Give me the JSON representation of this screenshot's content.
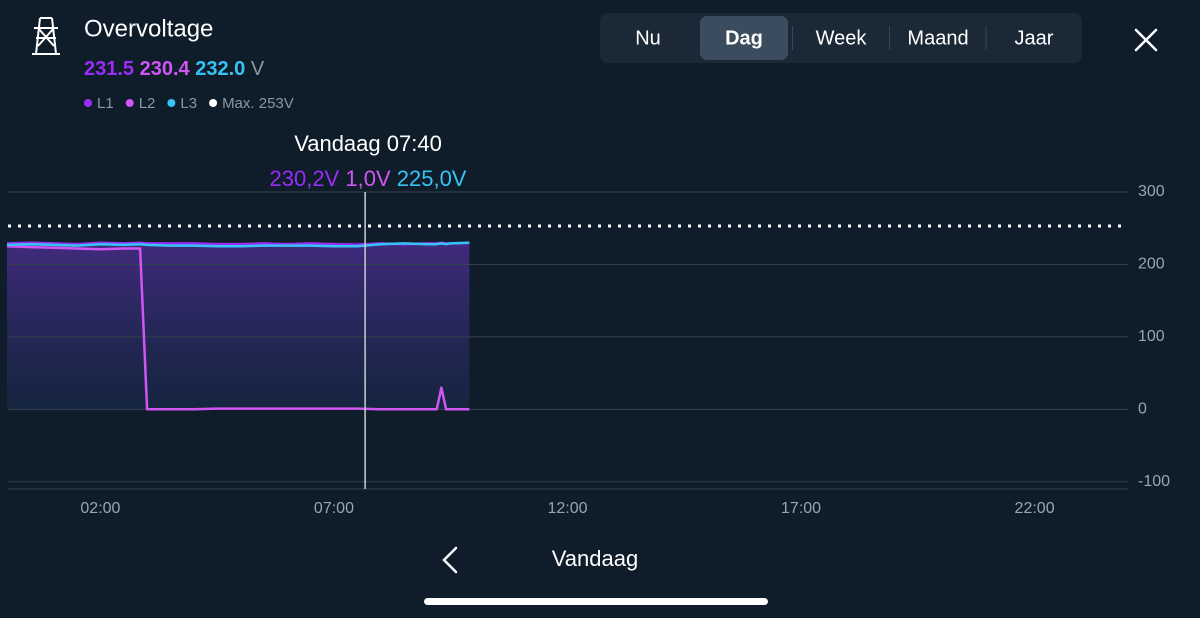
{
  "header": {
    "title": "Overvoltage",
    "readings": [
      "231.5",
      "230.4",
      "232.0"
    ],
    "unit": "V"
  },
  "tabs": [
    "Nu",
    "Dag",
    "Week",
    "Maand",
    "Jaar"
  ],
  "active_tab": 1,
  "tooltip": {
    "time": "Vandaag 07:40",
    "values": [
      "230,2V",
      "1,0V",
      "225,0V"
    ]
  },
  "footer": {
    "label": "Vandaag"
  },
  "chart_data": {
    "type": "line",
    "x": [
      0,
      0.5,
      1,
      1.5,
      2,
      2.5,
      2.85,
      3,
      3.5,
      4,
      4.5,
      5,
      5.5,
      6,
      6.5,
      7,
      7.5,
      8,
      8.5,
      9,
      9.2,
      9.3,
      9.4,
      9.5,
      9.9
    ],
    "series": [
      {
        "name": "L1",
        "color": "#9a2cf5",
        "values": [
          229,
          230,
          229,
          228,
          230,
          229,
          230,
          229,
          229,
          229,
          228,
          228,
          229,
          228,
          229,
          228,
          227,
          229,
          228,
          229,
          229,
          230,
          229,
          229,
          230
        ]
      },
      {
        "name": "L2",
        "color": "#d155f2",
        "values": [
          225,
          224,
          223,
          222,
          221,
          222,
          222,
          0,
          0,
          0,
          1,
          1,
          1,
          1,
          1,
          1,
          1,
          0,
          0,
          0,
          0,
          30,
          0,
          0,
          0
        ]
      },
      {
        "name": "L3",
        "color": "#36c3f5",
        "values": [
          227,
          228,
          227,
          226,
          228,
          227,
          228,
          227,
          226,
          226,
          225,
          225,
          226,
          226,
          226,
          225,
          225,
          228,
          229,
          228,
          228,
          229,
          228,
          229,
          230
        ]
      }
    ],
    "max": 253,
    "max_label": "Max. 253V",
    "max_color": "#ffffff",
    "cursor": 7.667,
    "xlim": [
      0,
      24
    ],
    "xticks": [
      {
        "value": 2,
        "label": "02:00"
      },
      {
        "value": 7,
        "label": "07:00"
      },
      {
        "value": 12,
        "label": "12:00"
      },
      {
        "value": 17,
        "label": "17:00"
      },
      {
        "value": 22,
        "label": "22:00"
      }
    ],
    "ylim": [
      -110,
      300
    ],
    "yticks": [
      300,
      200,
      100,
      0,
      -100
    ],
    "grid": true
  }
}
